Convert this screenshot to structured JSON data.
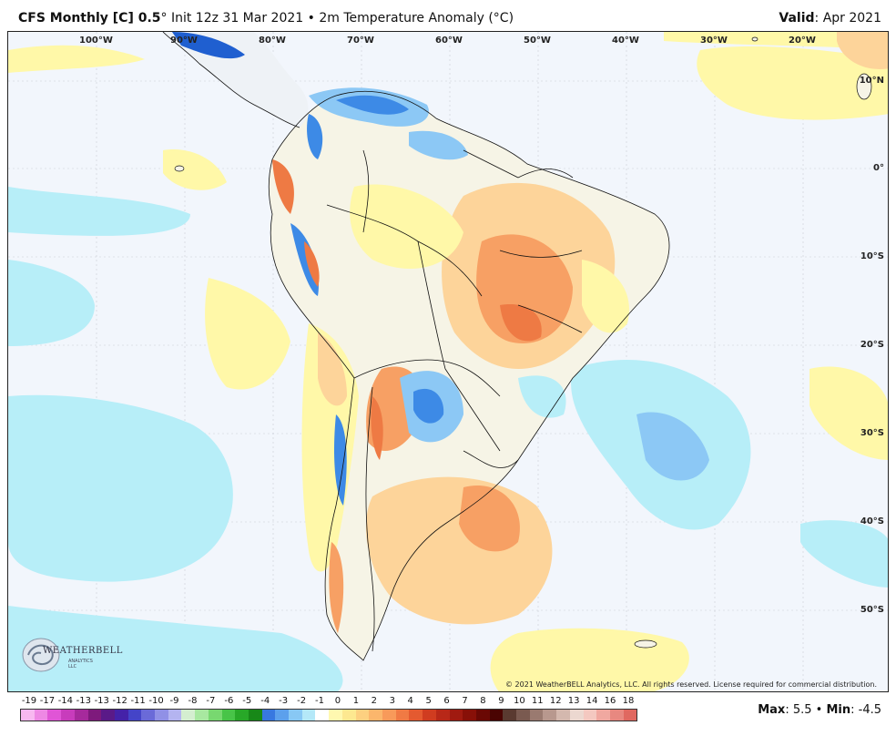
{
  "header": {
    "model": "CFS Monthly [C] 0.5",
    "degree_mark": "°",
    "init": " Init 12z 31 Mar 2021",
    "bullet": " • ",
    "field": "2m Temperature Anomaly (°C)",
    "valid_label": "Valid",
    "valid_value": ": Apr 2021"
  },
  "map": {
    "longitude_labels": [
      "100°W",
      "90°W",
      "80°W",
      "70°W",
      "60°W",
      "50°W",
      "40°W",
      "30°W",
      "20°W"
    ],
    "latitude_labels": [
      "10°N",
      "0°",
      "10°S",
      "20°S",
      "30°S",
      "40°S",
      "50°S"
    ],
    "copyright": "© 2021 WeatherBELL Analytics, LLC. All rights reserved. License required for commercial distribution.",
    "logo_text": "WEATHERBELL",
    "logo_sub": "ANALYTICS LLC",
    "colors": {
      "ocean": "#f2f6fc",
      "warm_light": "#fff8a8",
      "warm_mid": "#fdd49a",
      "warm_strong": "#f7a064",
      "warm_max": "#ee7a44",
      "cool_light": "#b7eef8",
      "cool_mid": "#8cc8f5",
      "cool_strong": "#3d8ae6",
      "cool_max": "#1f5fd0",
      "border": "#111111"
    }
  },
  "colorbar": {
    "labels": [
      "-19",
      "-17",
      "-14",
      "-13",
      "-13",
      "-12",
      "-11",
      "-10",
      "-9",
      "-8",
      "-7",
      "-6",
      "-5",
      "-4",
      "-3",
      "-2",
      "-1",
      "0",
      "1",
      "2",
      "3",
      "4",
      "5",
      "6",
      "7",
      "8",
      "9",
      "10",
      "11",
      "12",
      "13",
      "14",
      "16",
      "18"
    ],
    "colors": [
      "#f8b8f0",
      "#ee88e4",
      "#e055d6",
      "#c83cbc",
      "#a62a9c",
      "#7e1a7c",
      "#5a1a88",
      "#4422a8",
      "#4444c8",
      "#6a6ad8",
      "#9090e6",
      "#b4b4f0",
      "#d4eed0",
      "#a8e8a0",
      "#78d870",
      "#48c448",
      "#28a828",
      "#188818",
      "#3878e0",
      "#5ca0ec",
      "#88c8f4",
      "#b4e8f8",
      "#ffffff",
      "#fff8b0",
      "#fde890",
      "#fdd080",
      "#fbb66c",
      "#f89a5a",
      "#f07a44",
      "#e45a30",
      "#d03c20",
      "#b82818",
      "#a01a10",
      "#881008",
      "#6a0804",
      "#4a0402",
      "#5a3a30",
      "#7a5a50",
      "#9a7a70",
      "#b8988e",
      "#d4b8ae",
      "#ecd8d0",
      "#f4c8c0",
      "#f0a8a0",
      "#e88880",
      "#e06860"
    ]
  },
  "stats": {
    "max_label": "Max",
    "max_value": ": 5.5",
    "bullet": " • ",
    "min_label": "Min",
    "min_value": ": -4.5"
  }
}
